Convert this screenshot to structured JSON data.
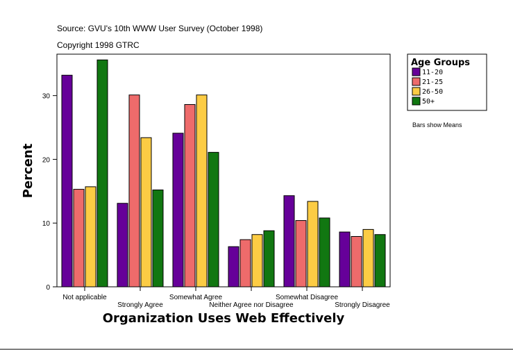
{
  "header": {
    "source": "Source: GVU's 10th WWW User Survey (October 1998)",
    "copyright": "Copyright 1998 GTRC"
  },
  "legend": {
    "title": "Age Groups",
    "note": "Bars show Means"
  },
  "chart_data": {
    "type": "bar",
    "xlabel": "Organization Uses Web Effectively",
    "ylabel": "Percent",
    "ylim": [
      0,
      36.5
    ],
    "yticks": [
      0,
      10,
      20,
      30
    ],
    "grid": false,
    "legend_position": "right",
    "categories": [
      "Not applicable",
      "Strongly Agree",
      "Somewhat Agree",
      "Neither Agree nor Disagree",
      "Somewhat Disagree",
      "Strongly Disagree"
    ],
    "series": [
      {
        "name": "11-20",
        "color": "#660099",
        "values": [
          33.2,
          13.1,
          24.1,
          6.3,
          14.3,
          8.6
        ]
      },
      {
        "name": "21-25",
        "color": "#ee6b6b",
        "values": [
          15.3,
          30.1,
          28.6,
          7.4,
          10.4,
          7.9
        ]
      },
      {
        "name": "26-50",
        "color": "#fccc44",
        "values": [
          15.7,
          23.4,
          30.1,
          8.2,
          13.4,
          9.0
        ]
      },
      {
        "name": "50+",
        "color": "#117711",
        "values": [
          35.6,
          15.2,
          21.1,
          8.8,
          10.8,
          8.2
        ]
      }
    ]
  }
}
